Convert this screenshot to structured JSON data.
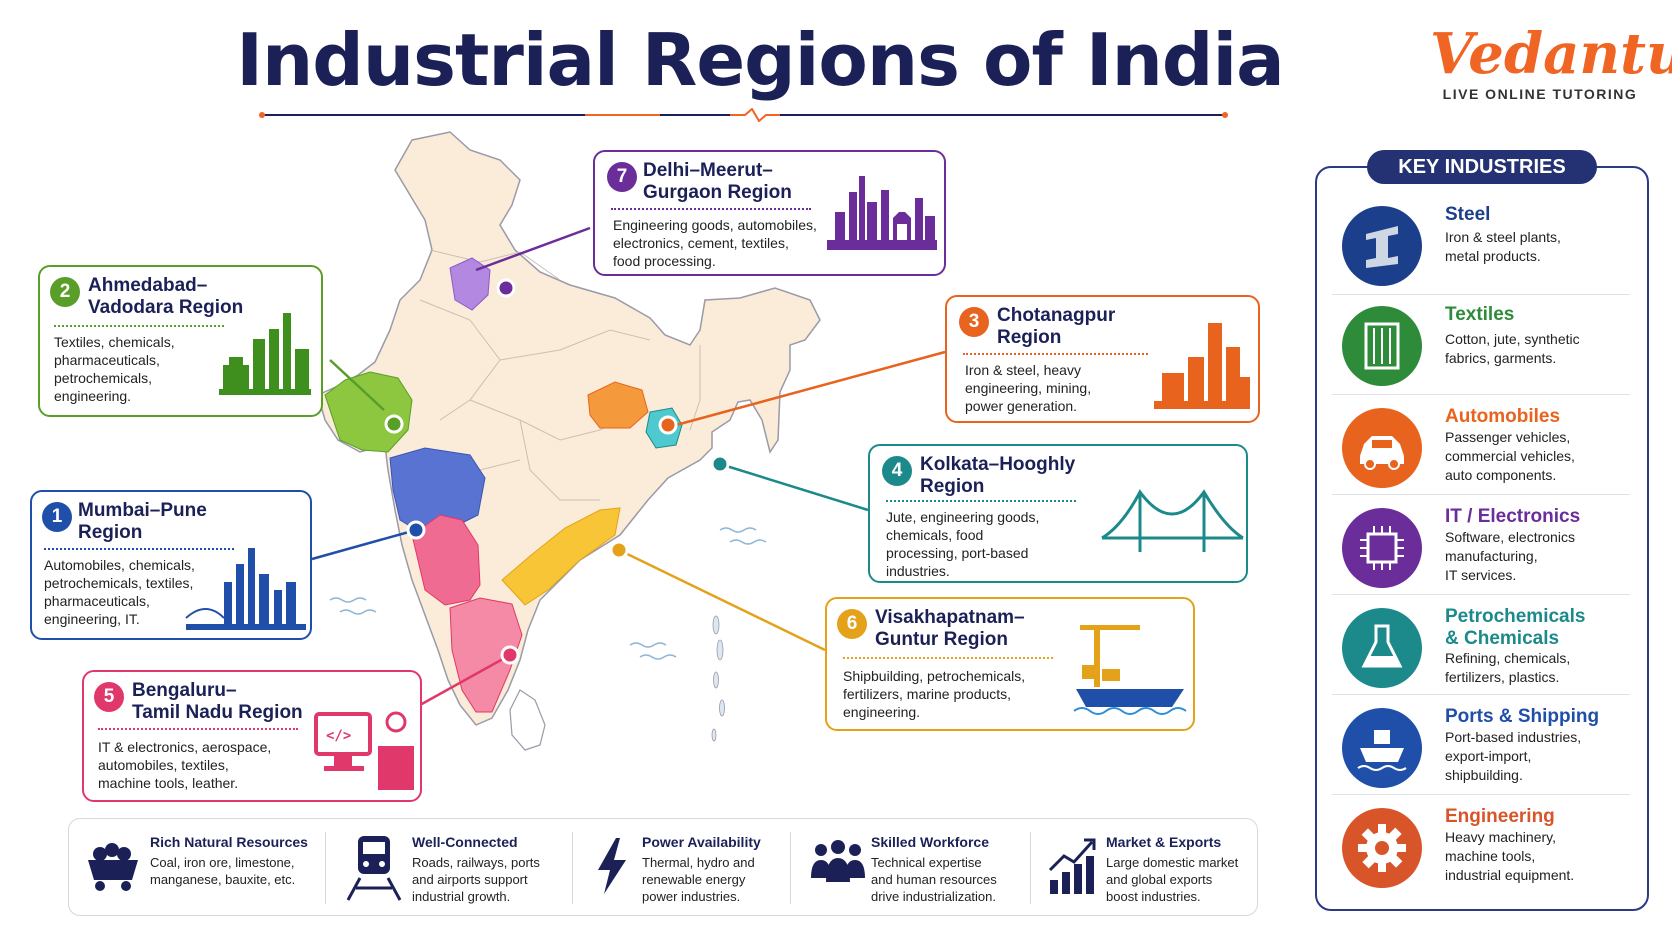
{
  "title": "Industrial Regions of India",
  "logo": {
    "name": "Vedantu",
    "tagline": "LIVE ONLINE TUTORING"
  },
  "regions": [
    {
      "num": "7",
      "title_1": "Delhi–Meerut–",
      "title_2": "Gurgaon Region",
      "desc": [
        "Engineering goods, automobiles,",
        "electronics, cement, textiles,",
        "food processing."
      ],
      "color": "#6b2d9a",
      "icon": "city-skyline-icon"
    },
    {
      "num": "2",
      "title_1": "Ahmedabad–",
      "title_2": "Vadodara Region",
      "desc": [
        "Textiles, chemicals,",
        "pharmaceuticals,",
        "petrochemicals,",
        "engineering."
      ],
      "color": "#5a9e2a",
      "icon": "refinery-icon"
    },
    {
      "num": "3",
      "title_1": "Chotanagpur",
      "title_2": "Region",
      "desc": [
        "Iron & steel, heavy",
        "engineering, mining,",
        "power generation."
      ],
      "color": "#e8631e",
      "icon": "steel-plant-icon"
    },
    {
      "num": "4",
      "title_1": "Kolkata–Hooghly",
      "title_2": "Region",
      "desc": [
        "Jute, engineering goods,",
        "chemicals, food",
        "processing, port-based",
        "industries."
      ],
      "color": "#1c8a8a",
      "icon": "bridge-icon"
    },
    {
      "num": "1",
      "title_1": "Mumbai–Pune",
      "title_2": "Region",
      "desc": [
        "Automobiles, chemicals,",
        "petrochemicals, textiles,",
        "pharmaceuticals,",
        "engineering, IT."
      ],
      "color": "#1f4fa8",
      "icon": "skyline-bridge-icon"
    },
    {
      "num": "6",
      "title_1": "Visakhapatnam–",
      "title_2": "Guntur Region",
      "desc": [
        "Shipbuilding, petrochemicals,",
        "fertilizers, marine products,",
        "engineering."
      ],
      "color": "#e3a21a",
      "icon": "port-crane-icon"
    },
    {
      "num": "5",
      "title_1": "Bengaluru–",
      "title_2": "Tamil Nadu Region",
      "desc": [
        "IT & electronics, aerospace,",
        "automobiles, textiles,",
        "machine tools, leather."
      ],
      "color": "#e0386a",
      "icon": "computer-code-icon"
    }
  ],
  "key_industries": {
    "heading": "KEY INDUSTRIES",
    "items": [
      {
        "name": "Steel",
        "desc": [
          "Iron & steel plants,",
          "metal products."
        ],
        "color": "#1b3f8a",
        "icon": "steel-beam-icon"
      },
      {
        "name": "Textiles",
        "desc": [
          "Cotton, jute, synthetic",
          "fabrics, garments."
        ],
        "color": "#2e8b3a",
        "icon": "fabric-icon"
      },
      {
        "name": "Automobiles",
        "desc": [
          "Passenger vehicles,",
          "commercial vehicles,",
          "auto components."
        ],
        "color": "#e8631e",
        "icon": "car-icon"
      },
      {
        "name": "IT / Electronics",
        "desc": [
          "Software, electronics",
          "manufacturing,",
          "IT services."
        ],
        "color": "#6b2d9a",
        "icon": "chip-icon"
      },
      {
        "name": "Petrochemicals",
        "name_2": "& Chemicals",
        "desc": [
          "Refining, chemicals,",
          "fertilizers, plastics."
        ],
        "color": "#1c8a8a",
        "icon": "flask-icon"
      },
      {
        "name": "Ports & Shipping",
        "desc": [
          "Port-based industries,",
          "export-import,",
          "shipbuilding."
        ],
        "color": "#1f4fa8",
        "icon": "ship-icon"
      },
      {
        "name": "Engineering",
        "desc": [
          "Heavy machinery,",
          "machine tools,",
          "industrial equipment."
        ],
        "color": "#d8552a",
        "icon": "gear-icon"
      }
    ]
  },
  "factors": [
    {
      "title": "Rich Natural Resources",
      "desc": [
        "Coal, iron ore, limestone,",
        "manganese, bauxite, etc."
      ],
      "icon": "mine-cart-icon"
    },
    {
      "title": "Well-Connected",
      "desc": [
        "Roads, railways, ports",
        "and airports support",
        "industrial growth."
      ],
      "icon": "train-icon"
    },
    {
      "title": "Power Availability",
      "desc": [
        "Thermal, hydro and",
        "renewable energy",
        "power industries."
      ],
      "icon": "lightning-icon"
    },
    {
      "title": "Skilled Workforce",
      "desc": [
        "Technical expertise",
        "and human resources",
        "drive industrialization."
      ],
      "icon": "people-icon"
    },
    {
      "title": "Market & Exports",
      "desc": [
        "Large domestic market",
        "and global exports",
        "boost industries."
      ],
      "icon": "growth-chart-icon"
    }
  ]
}
